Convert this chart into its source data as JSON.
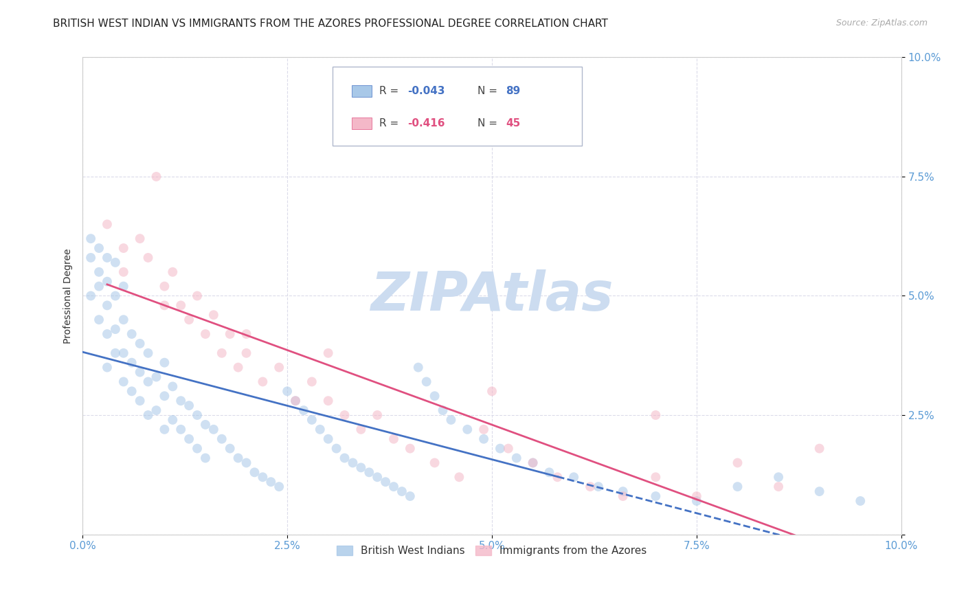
{
  "title": "BRITISH WEST INDIAN VS IMMIGRANTS FROM THE AZORES PROFESSIONAL DEGREE CORRELATION CHART",
  "source": "Source: ZipAtlas.com",
  "ylabel": "Professional Degree",
  "xmin": 0.0,
  "xmax": 0.1,
  "ymin": 0.0,
  "ymax": 0.1,
  "xticks": [
    0.0,
    0.025,
    0.05,
    0.075,
    0.1
  ],
  "yticks": [
    0.0,
    0.025,
    0.05,
    0.075,
    0.1
  ],
  "ytick_labels": [
    "",
    "2.5%",
    "5.0%",
    "7.5%",
    "10.0%"
  ],
  "xtick_labels": [
    "0.0%",
    "2.5%",
    "5.0%",
    "7.5%",
    "10.0%"
  ],
  "legend_series1": "British West Indians",
  "legend_series2": "Immigrants from the Azores",
  "color_blue": "#a8c8e8",
  "color_pink": "#f4b8c8",
  "color_blue_line": "#4472c4",
  "color_pink_line": "#e05080",
  "color_axis_text": "#5b9bd5",
  "grid_color": "#d8d8e8",
  "background_color": "#ffffff",
  "watermark_text": "ZIPAtlas",
  "watermark_color": "#ccdcf0",
  "title_fontsize": 11,
  "axis_label_fontsize": 10,
  "tick_fontsize": 11,
  "marker_size": 100,
  "marker_alpha": 0.55,
  "bwi_R": -0.043,
  "bwi_N": 89,
  "azores_R": -0.416,
  "azores_N": 45,
  "bwi_x": [
    0.001,
    0.001,
    0.001,
    0.002,
    0.002,
    0.002,
    0.002,
    0.003,
    0.003,
    0.003,
    0.003,
    0.003,
    0.004,
    0.004,
    0.004,
    0.004,
    0.005,
    0.005,
    0.005,
    0.005,
    0.006,
    0.006,
    0.006,
    0.007,
    0.007,
    0.007,
    0.008,
    0.008,
    0.008,
    0.009,
    0.009,
    0.01,
    0.01,
    0.01,
    0.011,
    0.011,
    0.012,
    0.012,
    0.013,
    0.013,
    0.014,
    0.014,
    0.015,
    0.015,
    0.016,
    0.017,
    0.018,
    0.019,
    0.02,
    0.021,
    0.022,
    0.023,
    0.024,
    0.025,
    0.026,
    0.027,
    0.028,
    0.029,
    0.03,
    0.031,
    0.032,
    0.033,
    0.034,
    0.035,
    0.036,
    0.037,
    0.038,
    0.039,
    0.04,
    0.041,
    0.042,
    0.043,
    0.044,
    0.045,
    0.047,
    0.049,
    0.051,
    0.053,
    0.055,
    0.057,
    0.06,
    0.063,
    0.066,
    0.07,
    0.075,
    0.08,
    0.085,
    0.09,
    0.095
  ],
  "bwi_y": [
    0.05,
    0.058,
    0.062,
    0.045,
    0.052,
    0.055,
    0.06,
    0.035,
    0.042,
    0.048,
    0.053,
    0.058,
    0.038,
    0.043,
    0.05,
    0.057,
    0.032,
    0.038,
    0.045,
    0.052,
    0.03,
    0.036,
    0.042,
    0.028,
    0.034,
    0.04,
    0.025,
    0.032,
    0.038,
    0.026,
    0.033,
    0.022,
    0.029,
    0.036,
    0.024,
    0.031,
    0.022,
    0.028,
    0.02,
    0.027,
    0.018,
    0.025,
    0.016,
    0.023,
    0.022,
    0.02,
    0.018,
    0.016,
    0.015,
    0.013,
    0.012,
    0.011,
    0.01,
    0.03,
    0.028,
    0.026,
    0.024,
    0.022,
    0.02,
    0.018,
    0.016,
    0.015,
    0.014,
    0.013,
    0.012,
    0.011,
    0.01,
    0.009,
    0.008,
    0.035,
    0.032,
    0.029,
    0.026,
    0.024,
    0.022,
    0.02,
    0.018,
    0.016,
    0.015,
    0.013,
    0.012,
    0.01,
    0.009,
    0.008,
    0.007,
    0.01,
    0.012,
    0.009,
    0.007
  ],
  "azores_x": [
    0.003,
    0.005,
    0.007,
    0.008,
    0.009,
    0.01,
    0.011,
    0.012,
    0.013,
    0.014,
    0.015,
    0.016,
    0.017,
    0.018,
    0.019,
    0.02,
    0.022,
    0.024,
    0.026,
    0.028,
    0.03,
    0.032,
    0.034,
    0.036,
    0.038,
    0.04,
    0.043,
    0.046,
    0.049,
    0.052,
    0.055,
    0.058,
    0.062,
    0.066,
    0.07,
    0.075,
    0.08,
    0.085,
    0.09,
    0.005,
    0.01,
    0.02,
    0.03,
    0.05,
    0.07
  ],
  "azores_y": [
    0.065,
    0.06,
    0.062,
    0.058,
    0.075,
    0.052,
    0.055,
    0.048,
    0.045,
    0.05,
    0.042,
    0.046,
    0.038,
    0.042,
    0.035,
    0.038,
    0.032,
    0.035,
    0.028,
    0.032,
    0.028,
    0.025,
    0.022,
    0.025,
    0.02,
    0.018,
    0.015,
    0.012,
    0.022,
    0.018,
    0.015,
    0.012,
    0.01,
    0.008,
    0.012,
    0.008,
    0.015,
    0.01,
    0.018,
    0.055,
    0.048,
    0.042,
    0.038,
    0.03,
    0.025
  ]
}
